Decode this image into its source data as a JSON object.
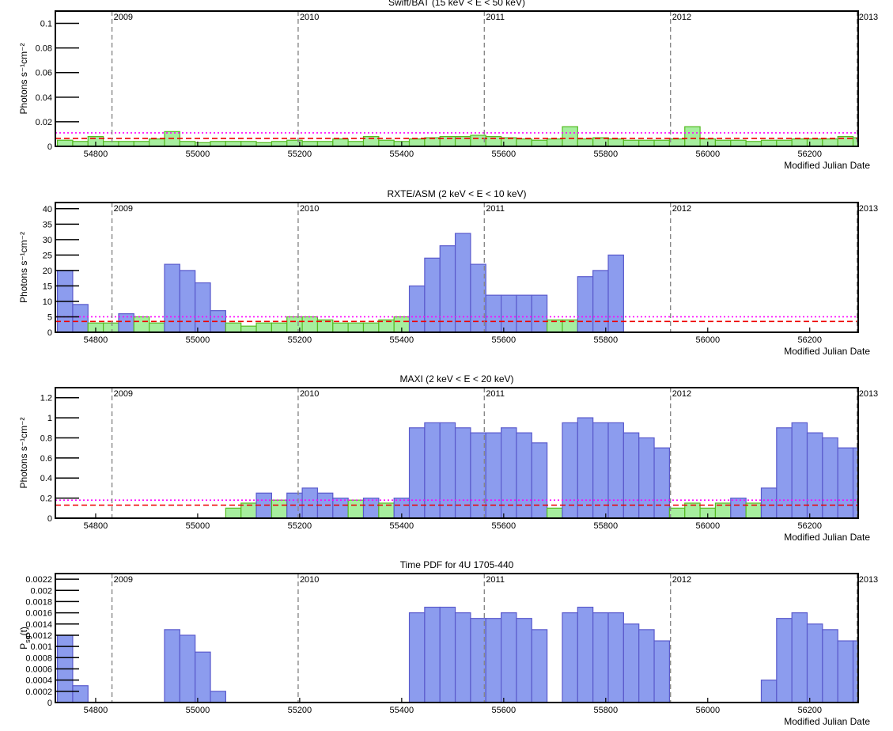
{
  "chart_data": [
    {
      "type": "bar",
      "title": "Swift/BAT  (15 keV < E < 50 keV)",
      "ylabel": "Photons s⁻¹cm⁻²",
      "xlabel": "Modified Julian Date",
      "x": [
        54725,
        54755,
        54785,
        54815,
        54845,
        54875,
        54905,
        54935,
        54965,
        54995,
        55025,
        55055,
        55085,
        55115,
        55145,
        55175,
        55205,
        55235,
        55265,
        55295,
        55325,
        55355,
        55385,
        55415,
        55445,
        55475,
        55505,
        55535,
        55565,
        55595,
        55625,
        55655,
        55685,
        55715,
        55745,
        55775,
        55805,
        55835,
        55865,
        55895,
        55925,
        55955,
        55985,
        56015,
        56045,
        56075,
        56105,
        56135,
        56165,
        56195,
        56225,
        56255,
        56285
      ],
      "values": [
        0.005,
        0.004,
        0.008,
        0.004,
        0.004,
        0.004,
        0.006,
        0.012,
        0.004,
        0.003,
        0.004,
        0.004,
        0.004,
        0.003,
        0.004,
        0.005,
        0.004,
        0.004,
        0.006,
        0.004,
        0.008,
        0.005,
        0.004,
        0.006,
        0.007,
        0.008,
        0.008,
        0.009,
        0.008,
        0.007,
        0.006,
        0.005,
        0.006,
        0.016,
        0.006,
        0.007,
        0.006,
        0.005,
        0.005,
        0.005,
        0.006,
        0.016,
        0.006,
        0.005,
        0.005,
        0.004,
        0.005,
        0.005,
        0.006,
        0.006,
        0.006,
        0.008,
        0.007
      ],
      "color": "#a6ee9e",
      "stroke": "#55bb22",
      "hlines": [
        {
          "value": 0.011,
          "color": "#ff00ff",
          "style": "dotted"
        },
        {
          "value": 0.0065,
          "color": "#ee0000",
          "style": "dashed"
        }
      ],
      "xlim": [
        54721,
        56295
      ],
      "xticks": [
        54800,
        55000,
        55200,
        55400,
        55600,
        55800,
        56000,
        56200
      ],
      "ylim": [
        0,
        0.11
      ],
      "yticks": [
        0,
        0.02,
        0.04,
        0.06,
        0.08,
        0.1
      ],
      "year_markers": [
        {
          "x": 54832,
          "label": "2009"
        },
        {
          "x": 55197,
          "label": "2010"
        },
        {
          "x": 55562,
          "label": "2011"
        },
        {
          "x": 55927,
          "label": "2012"
        },
        {
          "x": 56293,
          "label": "2013"
        }
      ]
    },
    {
      "type": "bar",
      "title": "RXTE/ASM  (2 keV < E < 10 keV)",
      "ylabel": "Photons s⁻¹cm⁻²",
      "xlabel": "Modified Julian Date",
      "x": [
        54725,
        54755,
        54785,
        54815,
        54845,
        54875,
        54905,
        54935,
        54965,
        54995,
        55025,
        55055,
        55085,
        55115,
        55145,
        55175,
        55205,
        55235,
        55265,
        55295,
        55325,
        55355,
        55385,
        55415,
        55445,
        55475,
        55505,
        55535,
        55565,
        55595,
        55625,
        55655,
        55685,
        55715,
        55745,
        55775,
        55805,
        55835,
        55865,
        55895,
        55925,
        55955,
        55985,
        56015,
        56045,
        56075,
        56105,
        56135,
        56165,
        56195,
        56225,
        56255,
        56285
      ],
      "values": [
        20,
        9,
        3,
        3,
        6,
        5,
        3,
        22,
        20,
        16,
        7,
        3,
        2,
        3,
        3,
        5,
        5,
        4,
        3,
        3,
        3,
        4,
        5,
        15,
        24,
        28,
        32,
        22,
        12,
        12,
        12,
        12,
        4,
        4,
        18,
        20,
        25,
        null,
        null,
        null,
        null,
        null,
        null,
        null,
        null,
        null,
        null,
        null,
        null,
        null,
        null,
        null,
        null
      ],
      "color": "#a6ee9e",
      "stroke": "#55bb22",
      "flare_color": "#8c9cee",
      "hlines": [
        {
          "value": 5,
          "color": "#ff00ff",
          "style": "dotted"
        },
        {
          "value": 3.5,
          "color": "#ee0000",
          "style": "dashed"
        }
      ],
      "xlim": [
        54721,
        56295
      ],
      "xticks": [
        54800,
        55000,
        55200,
        55400,
        55600,
        55800,
        56000,
        56200
      ],
      "ylim": [
        0,
        42
      ],
      "yticks": [
        0,
        5,
        10,
        15,
        20,
        25,
        30,
        35,
        40
      ],
      "year_markers": [
        {
          "x": 54832,
          "label": "2009"
        },
        {
          "x": 55197,
          "label": "2010"
        },
        {
          "x": 55562,
          "label": "2011"
        },
        {
          "x": 55927,
          "label": "2012"
        },
        {
          "x": 56293,
          "label": "2013"
        }
      ]
    },
    {
      "type": "bar",
      "title": "MAXI  (2 keV < E < 20 keV)",
      "ylabel": "Photons s⁻¹cm⁻²",
      "xlabel": "Modified Julian Date",
      "x": [
        54725,
        54755,
        54785,
        54815,
        54845,
        54875,
        54905,
        54935,
        54965,
        54995,
        55025,
        55055,
        55085,
        55115,
        55145,
        55175,
        55205,
        55235,
        55265,
        55295,
        55325,
        55355,
        55385,
        55415,
        55445,
        55475,
        55505,
        55535,
        55565,
        55595,
        55625,
        55655,
        55685,
        55715,
        55745,
        55775,
        55805,
        55835,
        55865,
        55895,
        55925,
        55955,
        55985,
        56015,
        56045,
        56075,
        56105,
        56135,
        56165,
        56195,
        56225,
        56255,
        56285
      ],
      "values": [
        null,
        null,
        null,
        null,
        null,
        null,
        null,
        null,
        null,
        null,
        null,
        0.1,
        0.15,
        0.25,
        0.18,
        0.25,
        0.3,
        0.25,
        0.2,
        0.18,
        0.2,
        0.15,
        0.2,
        0.9,
        0.95,
        0.95,
        0.9,
        0.85,
        0.85,
        0.9,
        0.85,
        0.75,
        0.1,
        0.95,
        1.0,
        0.95,
        0.95,
        0.85,
        0.8,
        0.7,
        0.1,
        0.15,
        0.1,
        0.15,
        0.2,
        0.15,
        0.3,
        0.9,
        0.95,
        0.85,
        0.8,
        0.7,
        0.7
      ],
      "color": "#a6ee9e",
      "stroke": "#55bb22",
      "flare_color": "#8c9cee",
      "hlines": [
        {
          "value": 0.18,
          "color": "#ff00ff",
          "style": "dotted"
        },
        {
          "value": 0.13,
          "color": "#ee0000",
          "style": "dashed"
        }
      ],
      "xlim": [
        54721,
        56295
      ],
      "xticks": [
        54800,
        55000,
        55200,
        55400,
        55600,
        55800,
        56000,
        56200
      ],
      "ylim": [
        0,
        1.3
      ],
      "yticks": [
        0,
        0.2,
        0.4,
        0.6,
        0.8,
        1,
        1.2
      ],
      "year_markers": [
        {
          "x": 54832,
          "label": "2009"
        },
        {
          "x": 55197,
          "label": "2010"
        },
        {
          "x": 55562,
          "label": "2011"
        },
        {
          "x": 55927,
          "label": "2012"
        },
        {
          "x": 56293,
          "label": "2013"
        }
      ]
    },
    {
      "type": "bar",
      "title": "Time PDF for 4U 1705-440",
      "ylabel": "P",
      "ylabel_sub": "sg",
      "ylabel_suffix": "(t)",
      "xlabel": "Modified Julian Date",
      "x": [
        54725,
        54755,
        54785,
        54815,
        54845,
        54875,
        54905,
        54935,
        54965,
        54995,
        55025,
        55055,
        55085,
        55115,
        55145,
        55175,
        55205,
        55235,
        55265,
        55295,
        55325,
        55355,
        55385,
        55415,
        55445,
        55475,
        55505,
        55535,
        55565,
        55595,
        55625,
        55655,
        55685,
        55715,
        55745,
        55775,
        55805,
        55835,
        55865,
        55895,
        55925,
        55955,
        55985,
        56015,
        56045,
        56075,
        56105,
        56135,
        56165,
        56195,
        56225,
        56255,
        56285
      ],
      "values": [
        0.0012,
        0.0003,
        0,
        0,
        0,
        0,
        0,
        0.0013,
        0.0012,
        0.0009,
        0.0002,
        0,
        0,
        0,
        0,
        0,
        0,
        0,
        0,
        0,
        0,
        0,
        0,
        0.0016,
        0.0017,
        0.0017,
        0.0016,
        0.0015,
        0.0015,
        0.0016,
        0.0015,
        0.0013,
        0,
        0.0016,
        0.0017,
        0.0016,
        0.0016,
        0.0014,
        0.0013,
        0.0011,
        0,
        0,
        0,
        0,
        0,
        0,
        0.0004,
        0.0015,
        0.0016,
        0.0014,
        0.0013,
        0.0011,
        0.0011
      ],
      "color": "#8c9cee",
      "stroke": "#5a5acc",
      "xlim": [
        54721,
        56295
      ],
      "xticks": [
        54800,
        55000,
        55200,
        55400,
        55600,
        55800,
        56000,
        56200
      ],
      "ylim": [
        0,
        0.0023
      ],
      "yticks": [
        0,
        0.0002,
        0.0004,
        0.0006,
        0.0008,
        0.001,
        0.0012,
        0.0014,
        0.0016,
        0.0018,
        0.002,
        0.0022
      ],
      "year_markers": [
        {
          "x": 54832,
          "label": "2009"
        },
        {
          "x": 55197,
          "label": "2010"
        },
        {
          "x": 55562,
          "label": "2011"
        },
        {
          "x": 55927,
          "label": "2012"
        },
        {
          "x": 56293,
          "label": "2013"
        }
      ]
    }
  ]
}
